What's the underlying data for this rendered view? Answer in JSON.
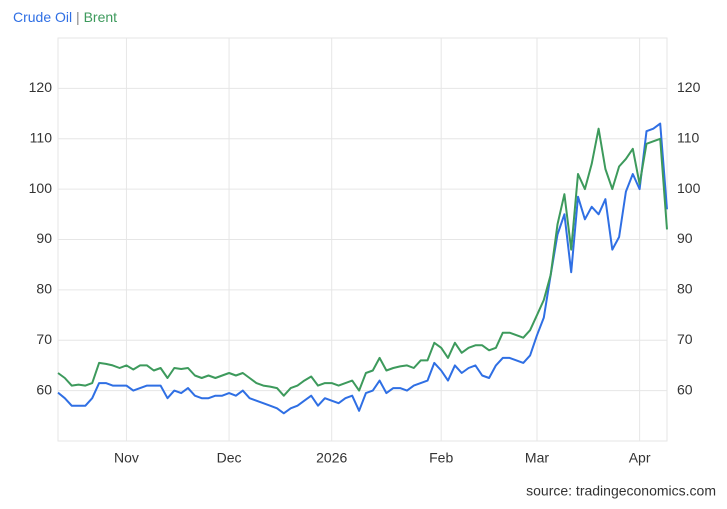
{
  "chart_data": {
    "type": "line",
    "legend_separator": "|",
    "source": "source: tradingeconomics.com",
    "categories": [
      null,
      null,
      null,
      null,
      null,
      null,
      null,
      null,
      null,
      null,
      "Nov",
      null,
      null,
      null,
      null,
      null,
      null,
      null,
      null,
      null,
      null,
      null,
      null,
      null,
      null,
      "Dec",
      null,
      null,
      null,
      null,
      null,
      null,
      null,
      null,
      null,
      null,
      null,
      null,
      null,
      null,
      "2026",
      null,
      null,
      null,
      null,
      null,
      null,
      null,
      null,
      null,
      null,
      null,
      null,
      null,
      null,
      null,
      "Feb",
      null,
      null,
      null,
      null,
      null,
      null,
      null,
      null,
      null,
      null,
      null,
      null,
      null,
      "Mar",
      null,
      null,
      null,
      null,
      null,
      null,
      null,
      null,
      null,
      null,
      null,
      null,
      null,
      null,
      "Apr",
      null,
      null,
      null,
      null
    ],
    "series": [
      {
        "name": "Crude Oil",
        "color": "#2f6fe4",
        "values": [
          59.6,
          58.5,
          57,
          57,
          57,
          58.5,
          61.5,
          61.5,
          61,
          61,
          61,
          60,
          60.5,
          61,
          61,
          61,
          58.5,
          60,
          59.5,
          60.5,
          59,
          58.5,
          58.5,
          59,
          59,
          59.5,
          59,
          60,
          58.5,
          58,
          57.5,
          57,
          56.5,
          55.5,
          56.5,
          57,
          58,
          59,
          57,
          58.5,
          58,
          57.5,
          58.5,
          59,
          56,
          59.5,
          60,
          62,
          59.5,
          60.5,
          60.5,
          60,
          61,
          61.5,
          62,
          65.5,
          64,
          62,
          65,
          63.5,
          64.5,
          65,
          63,
          62.5,
          65,
          66.5,
          66.5,
          66,
          65.5,
          67,
          71,
          74.5,
          83,
          91,
          95,
          83.5,
          98.5,
          94,
          96.5,
          95,
          98,
          88,
          90.5,
          99.5,
          103,
          100,
          111.5,
          112,
          113,
          96
        ]
      },
      {
        "name": "Brent",
        "color": "#3d9a5c",
        "values": [
          63.5,
          62.5,
          61,
          61.2,
          61,
          61.5,
          65.5,
          65.3,
          65,
          64.5,
          65,
          64.2,
          65,
          65,
          64,
          64.5,
          62.5,
          64.5,
          64.3,
          64.5,
          63,
          62.5,
          63,
          62.5,
          63,
          63.5,
          63,
          63.5,
          62.5,
          61.5,
          61,
          60.8,
          60.5,
          59,
          60.5,
          61,
          62,
          62.8,
          61,
          61.5,
          61.5,
          61,
          61.5,
          62,
          60,
          63.5,
          64,
          66.5,
          64,
          64.5,
          64.8,
          65,
          64.5,
          66,
          66,
          69.5,
          68.5,
          66.5,
          69.5,
          67.5,
          68.5,
          69,
          69,
          68,
          68.5,
          71.5,
          71.5,
          71,
          70.5,
          72,
          75,
          78,
          83,
          93,
          99,
          88,
          103,
          100,
          105,
          112,
          104,
          100,
          104.5,
          106,
          108,
          101,
          109,
          109.5,
          110,
          92
        ]
      }
    ],
    "ylim": [
      50,
      130
    ],
    "yticks": [
      60,
      70,
      80,
      90,
      100,
      110,
      120
    ],
    "grid": true
  }
}
